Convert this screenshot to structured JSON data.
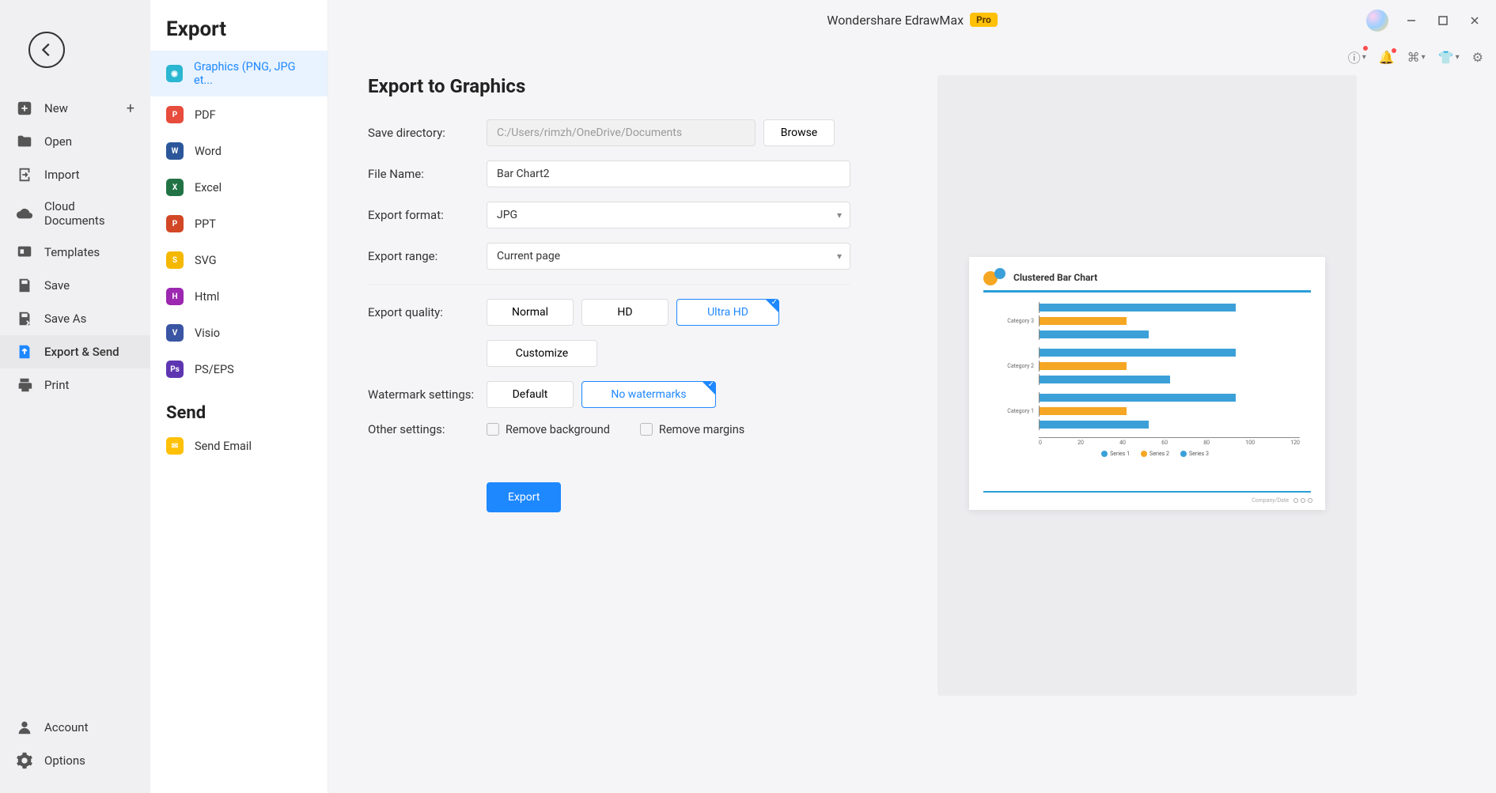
{
  "app": {
    "title": "Wondershare EdrawMax",
    "badge": "Pro"
  },
  "primary_nav": {
    "new": "New",
    "open": "Open",
    "import": "Import",
    "cloud": "Cloud Documents",
    "templates": "Templates",
    "save": "Save",
    "save_as": "Save As",
    "export_send": "Export & Send",
    "print": "Print",
    "account": "Account",
    "options": "Options"
  },
  "export_panel": {
    "heading": "Export",
    "send_heading": "Send",
    "items": {
      "graphics": "Graphics (PNG, JPG et...",
      "pdf": "PDF",
      "word": "Word",
      "excel": "Excel",
      "ppt": "PPT",
      "svg": "SVG",
      "html": "Html",
      "visio": "Visio",
      "ps": "PS/EPS",
      "email": "Send Email"
    }
  },
  "form": {
    "title": "Export to Graphics",
    "labels": {
      "save_dir": "Save directory:",
      "file_name": "File Name:",
      "format": "Export format:",
      "range": "Export range:",
      "quality": "Export quality:",
      "watermark": "Watermark settings:",
      "other": "Other settings:"
    },
    "save_dir": "C:/Users/rimzh/OneDrive/Documents",
    "browse": "Browse",
    "file_name": "Bar Chart2",
    "format": "JPG",
    "range": "Current page",
    "quality": {
      "normal": "Normal",
      "hd": "HD",
      "ultra": "Ultra HD",
      "customize": "Customize"
    },
    "watermark": {
      "default": "Default",
      "none": "No watermarks"
    },
    "other": {
      "remove_bg": "Remove background",
      "remove_margins": "Remove margins"
    },
    "export_btn": "Export"
  },
  "preview": {
    "title": "Clustered Bar Chart",
    "categories": [
      "Category 3",
      "Category 2",
      "Category 1"
    ],
    "series": [
      {
        "name": "Series 1",
        "color": "#3ba0d8",
        "values": [
          90,
          90,
          90
        ]
      },
      {
        "name": "Series 2",
        "color": "#f5a623",
        "values": [
          40,
          40,
          40
        ]
      },
      {
        "name": "Series 3",
        "color": "#3ba0d8",
        "values": [
          50,
          60,
          50
        ]
      }
    ],
    "x_ticks": [
      "0",
      "20",
      "40",
      "60",
      "80",
      "100",
      "120"
    ],
    "xmax": 120,
    "footer": "Company/Date"
  }
}
